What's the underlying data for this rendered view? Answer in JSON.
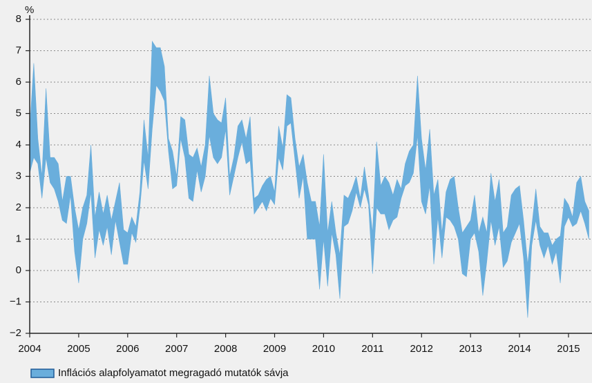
{
  "chart_data": {
    "type": "band",
    "y_unit": "%",
    "xlim": [
      2004,
      2015.48
    ],
    "xticks": [
      2004,
      2005,
      2006,
      2007,
      2008,
      2009,
      2010,
      2011,
      2012,
      2013,
      2014,
      2015
    ],
    "ylim": [
      -2,
      8
    ],
    "yticks": [
      {
        "value": -2,
        "label": "−2"
      },
      {
        "value": -1,
        "label": "−1"
      },
      0,
      1,
      2,
      3,
      4,
      5,
      6,
      7,
      8
    ],
    "grid": true,
    "legend": "bottom-left",
    "x": [
      2004,
      2004.083,
      2004.167,
      2004.25,
      2004.333,
      2004.417,
      2004.5,
      2004.583,
      2004.667,
      2004.75,
      2004.833,
      2004.917,
      2005,
      2005.083,
      2005.167,
      2005.25,
      2005.333,
      2005.417,
      2005.5,
      2005.583,
      2005.667,
      2005.75,
      2005.833,
      2005.917,
      2006,
      2006.083,
      2006.167,
      2006.25,
      2006.333,
      2006.417,
      2006.5,
      2006.583,
      2006.667,
      2006.75,
      2006.833,
      2006.917,
      2007,
      2007.083,
      2007.167,
      2007.25,
      2007.333,
      2007.417,
      2007.5,
      2007.583,
      2007.667,
      2007.75,
      2007.833,
      2007.917,
      2008,
      2008.083,
      2008.167,
      2008.25,
      2008.333,
      2008.417,
      2008.5,
      2008.583,
      2008.667,
      2008.75,
      2008.833,
      2008.917,
      2009,
      2009.083,
      2009.167,
      2009.25,
      2009.333,
      2009.417,
      2009.5,
      2009.583,
      2009.667,
      2009.75,
      2009.833,
      2009.917,
      2010,
      2010.083,
      2010.167,
      2010.25,
      2010.333,
      2010.417,
      2010.5,
      2010.583,
      2010.667,
      2010.75,
      2010.833,
      2010.917,
      2011,
      2011.083,
      2011.167,
      2011.25,
      2011.333,
      2011.417,
      2011.5,
      2011.583,
      2011.667,
      2011.75,
      2011.833,
      2011.917,
      2012,
      2012.083,
      2012.167,
      2012.25,
      2012.333,
      2012.417,
      2012.5,
      2012.583,
      2012.667,
      2012.75,
      2012.833,
      2012.917,
      2013,
      2013.083,
      2013.167,
      2013.25,
      2013.333,
      2013.417,
      2013.5,
      2013.583,
      2013.667,
      2013.75,
      2013.833,
      2013.917,
      2014,
      2014.083,
      2014.167,
      2014.25,
      2014.333,
      2014.417,
      2014.5,
      2014.583,
      2014.667,
      2014.75,
      2014.833,
      2014.917,
      2015,
      2015.083,
      2015.167,
      2015.25,
      2015.333,
      2015.417
    ],
    "series": [
      {
        "name": "Inflációs alapfolyamatot megragadó mutatók sávja",
        "color": "#6aaedc",
        "edge": "#1f5a96",
        "low": [
          3.1,
          3.6,
          3.4,
          2.3,
          3.6,
          2.8,
          2.6,
          2.2,
          1.6,
          1.5,
          2.4,
          0.6,
          -0.4,
          1.0,
          1.5,
          2.5,
          0.4,
          1.3,
          0.8,
          1.4,
          0.5,
          1.6,
          0.9,
          0.2,
          0.2,
          1.2,
          0.9,
          2.0,
          3.5,
          2.6,
          4.5,
          5.9,
          5.7,
          5.4,
          3.8,
          2.6,
          2.7,
          4.2,
          3.6,
          2.3,
          2.2,
          3.2,
          2.5,
          3.0,
          4.3,
          3.6,
          3.4,
          3.6,
          4.5,
          2.4,
          3.0,
          3.6,
          4.1,
          3.4,
          3.5,
          1.8,
          2.0,
          2.2,
          1.9,
          2.3,
          2.1,
          3.6,
          3.2,
          4.6,
          4.7,
          3.5,
          2.3,
          3.0,
          1.0,
          1.0,
          1.0,
          -0.6,
          1.0,
          -0.5,
          1.2,
          0.5,
          -0.9,
          1.4,
          1.5,
          1.9,
          2.5,
          2.0,
          2.6,
          2.1,
          -0.1,
          2.0,
          1.8,
          1.8,
          1.3,
          1.6,
          1.7,
          2.3,
          2.7,
          2.8,
          3.1,
          4.3,
          2.2,
          1.8,
          2.7,
          0.2,
          1.7,
          0.4,
          1.7,
          1.6,
          1.4,
          1.0,
          -0.1,
          -0.2,
          1.0,
          1.2,
          0.6,
          -0.8,
          0.3,
          1.6,
          0.8,
          1.4,
          0.1,
          0.3,
          0.9,
          1.2,
          1.5,
          0.4,
          -1.5,
          0.8,
          1.6,
          0.8,
          0.4,
          0.8,
          0.2,
          0.6,
          -0.4,
          1.4,
          1.7,
          1.4,
          1.5,
          1.9,
          1.5,
          1.0
        ],
        "high": [
          4.5,
          6.6,
          4.2,
          3.0,
          5.8,
          3.6,
          3.6,
          3.4,
          2.2,
          3.0,
          3.0,
          2.0,
          1.3,
          2.0,
          2.4,
          4.0,
          1.7,
          2.5,
          1.8,
          2.4,
          1.6,
          2.2,
          2.8,
          1.3,
          1.2,
          1.7,
          1.4,
          2.5,
          4.8,
          3.6,
          7.3,
          7.1,
          7.1,
          6.5,
          4.2,
          3.8,
          3.0,
          4.9,
          4.8,
          3.7,
          3.6,
          3.9,
          3.3,
          4.0,
          6.2,
          5.0,
          4.8,
          4.7,
          5.5,
          3.0,
          3.6,
          4.6,
          4.8,
          4.2,
          4.9,
          2.3,
          2.4,
          2.7,
          2.9,
          3.0,
          2.5,
          4.6,
          3.9,
          5.6,
          5.5,
          4.2,
          3.3,
          3.7,
          2.8,
          2.2,
          2.2,
          1.4,
          3.7,
          1.2,
          2.2,
          1.2,
          0.5,
          2.4,
          2.3,
          2.6,
          3.0,
          2.3,
          3.3,
          2.4,
          1.2,
          4.1,
          2.7,
          3.0,
          2.8,
          2.4,
          2.9,
          2.6,
          3.4,
          3.8,
          4.0,
          6.2,
          4.2,
          3.2,
          4.5,
          2.4,
          2.9,
          1.2,
          2.5,
          2.9,
          3.0,
          2.0,
          1.2,
          1.4,
          1.6,
          2.4,
          1.2,
          1.7,
          1.2,
          3.1,
          2.2,
          2.9,
          1.2,
          1.4,
          2.4,
          2.6,
          2.7,
          1.6,
          0.2,
          1.4,
          2.6,
          1.4,
          1.2,
          1.2,
          0.8,
          1.0,
          1.1,
          2.3,
          2.1,
          1.7,
          2.8,
          3.0,
          2.2,
          1.9
        ]
      }
    ]
  }
}
